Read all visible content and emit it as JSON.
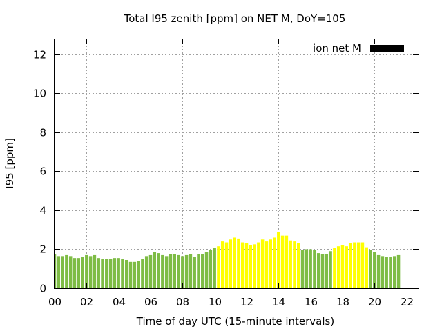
{
  "chart_data": {
    "type": "bar",
    "title": "Total I95 zenith [ppm] on NET M, DoY=105",
    "xlabel": "Time of day UTC (15-minute intervals)",
    "ylabel": "I95 [ppm]",
    "xlim": [
      0,
      22.75
    ],
    "ylim": [
      0,
      12.8
    ],
    "grid": true,
    "legend": {
      "label": "ion net M",
      "position": "top-right",
      "color": "#000000"
    },
    "xticks": [
      "00",
      "02",
      "04",
      "06",
      "08",
      "10",
      "12",
      "14",
      "16",
      "18",
      "20",
      "22"
    ],
    "xtick_values": [
      0,
      2,
      4,
      6,
      8,
      10,
      12,
      14,
      16,
      18,
      20,
      22
    ],
    "yticks": [
      "0",
      "2",
      "4",
      "6",
      "8",
      "10",
      "12"
    ],
    "ytick_values": [
      0,
      2,
      4,
      6,
      8,
      10,
      12
    ],
    "colors": {
      "green": "#7ebc45",
      "yellow": "#ffff00"
    },
    "interval_hours": 0.25,
    "values": [
      1.75,
      1.65,
      1.65,
      1.7,
      1.65,
      1.55,
      1.55,
      1.6,
      1.7,
      1.65,
      1.7,
      1.55,
      1.5,
      1.5,
      1.5,
      1.55,
      1.55,
      1.5,
      1.45,
      1.35,
      1.35,
      1.4,
      1.5,
      1.65,
      1.7,
      1.85,
      1.8,
      1.7,
      1.65,
      1.75,
      1.75,
      1.7,
      1.65,
      1.7,
      1.75,
      1.6,
      1.75,
      1.75,
      1.85,
      1.95,
      2.05,
      2.15,
      2.4,
      2.35,
      2.5,
      2.6,
      2.55,
      2.35,
      2.3,
      2.2,
      2.25,
      2.35,
      2.5,
      2.4,
      2.5,
      2.6,
      2.9,
      2.7,
      2.7,
      2.45,
      2.4,
      2.3,
      1.95,
      2.0,
      2.0,
      1.95,
      1.8,
      1.75,
      1.75,
      1.9,
      2.05,
      2.15,
      2.2,
      2.15,
      2.3,
      2.35,
      2.35,
      2.35,
      2.1,
      1.95,
      1.85,
      1.7,
      1.65,
      1.6,
      1.6,
      1.65,
      1.7
    ],
    "bar_colors": [
      "green",
      "green",
      "green",
      "green",
      "green",
      "green",
      "green",
      "green",
      "green",
      "green",
      "green",
      "green",
      "green",
      "green",
      "green",
      "green",
      "green",
      "green",
      "green",
      "green",
      "green",
      "green",
      "green",
      "green",
      "green",
      "green",
      "green",
      "green",
      "green",
      "green",
      "green",
      "green",
      "green",
      "green",
      "green",
      "green",
      "green",
      "green",
      "green",
      "green",
      "green",
      "yellow",
      "yellow",
      "yellow",
      "yellow",
      "yellow",
      "yellow",
      "yellow",
      "yellow",
      "yellow",
      "yellow",
      "yellow",
      "yellow",
      "yellow",
      "yellow",
      "yellow",
      "yellow",
      "yellow",
      "yellow",
      "yellow",
      "yellow",
      "yellow",
      "green",
      "green",
      "green",
      "green",
      "green",
      "green",
      "green",
      "green",
      "yellow",
      "yellow",
      "yellow",
      "yellow",
      "yellow",
      "yellow",
      "yellow",
      "yellow",
      "yellow",
      "green",
      "green",
      "green",
      "green",
      "green",
      "green",
      "green",
      "green"
    ]
  }
}
